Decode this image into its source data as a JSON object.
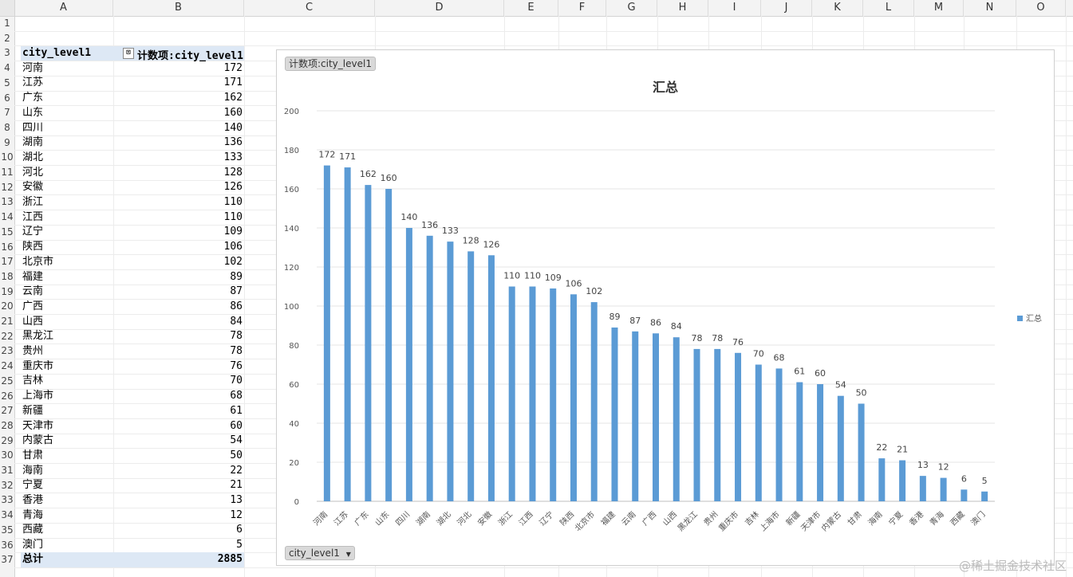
{
  "columns": [
    "A",
    "B",
    "C",
    "D",
    "E",
    "F",
    "G",
    "H",
    "I",
    "J",
    "K",
    "L",
    "M",
    "N",
    "O"
  ],
  "rows": [
    "1",
    "2",
    "3",
    "4",
    "5",
    "6",
    "7",
    "8",
    "9",
    "10",
    "11",
    "12",
    "13",
    "14",
    "15",
    "16",
    "17",
    "18",
    "19",
    "20",
    "21",
    "22",
    "23",
    "24",
    "25",
    "26",
    "27",
    "28",
    "29",
    "30",
    "31",
    "32",
    "33",
    "34",
    "35",
    "36",
    "37"
  ],
  "pivot": {
    "row_header": "city_level1",
    "value_header": "计数项:city_level1",
    "items": [
      {
        "name": "河南",
        "value": "172"
      },
      {
        "name": "江苏",
        "value": "171"
      },
      {
        "name": "广东",
        "value": "162"
      },
      {
        "name": "山东",
        "value": "160"
      },
      {
        "name": "四川",
        "value": "140"
      },
      {
        "name": "湖南",
        "value": "136"
      },
      {
        "name": "湖北",
        "value": "133"
      },
      {
        "name": "河北",
        "value": "128"
      },
      {
        "name": "安徽",
        "value": "126"
      },
      {
        "name": "浙江",
        "value": "110"
      },
      {
        "name": "江西",
        "value": "110"
      },
      {
        "name": "辽宁",
        "value": "109"
      },
      {
        "name": "陕西",
        "value": "106"
      },
      {
        "name": "北京市",
        "value": "102"
      },
      {
        "name": "福建",
        "value": "89"
      },
      {
        "name": "云南",
        "value": "87"
      },
      {
        "name": "广西",
        "value": "86"
      },
      {
        "name": "山西",
        "value": "84"
      },
      {
        "name": "黑龙江",
        "value": "78"
      },
      {
        "name": "贵州",
        "value": "78"
      },
      {
        "name": "重庆市",
        "value": "76"
      },
      {
        "name": "吉林",
        "value": "70"
      },
      {
        "name": "上海市",
        "value": "68"
      },
      {
        "name": "新疆",
        "value": "61"
      },
      {
        "name": "天津市",
        "value": "60"
      },
      {
        "name": "内蒙古",
        "value": "54"
      },
      {
        "name": "甘肃",
        "value": "50"
      },
      {
        "name": "海南",
        "value": "22"
      },
      {
        "name": "宁夏",
        "value": "21"
      },
      {
        "name": "香港",
        "value": "13"
      },
      {
        "name": "青海",
        "value": "12"
      },
      {
        "name": "西藏",
        "value": "6"
      },
      {
        "name": "澳门",
        "value": "5"
      }
    ],
    "total_label": "总计",
    "total_value": "2885"
  },
  "chart_chip_top": "计数项:city_level1",
  "chart_chip_bottom": "city_level1",
  "watermark": "@稀土掘金技术社区",
  "colors": {
    "bar": "#5b9bd5",
    "pivot_header_bg": "#dde8f5"
  },
  "chart_data": {
    "type": "bar",
    "title": "汇总",
    "categories": [
      "河南",
      "江苏",
      "广东",
      "山东",
      "四川",
      "湖南",
      "湖北",
      "河北",
      "安徽",
      "浙江",
      "江西",
      "辽宁",
      "陕西",
      "北京市",
      "福建",
      "云南",
      "广西",
      "山西",
      "黑龙江",
      "贵州",
      "重庆市",
      "吉林",
      "上海市",
      "新疆",
      "天津市",
      "内蒙古",
      "甘肃",
      "海南",
      "宁夏",
      "香港",
      "青海",
      "西藏",
      "澳门"
    ],
    "series": [
      {
        "name": "汇总",
        "values": [
          172,
          171,
          162,
          160,
          140,
          136,
          133,
          128,
          126,
          110,
          110,
          109,
          106,
          102,
          89,
          87,
          86,
          84,
          78,
          78,
          76,
          70,
          68,
          61,
          60,
          54,
          50,
          22,
          21,
          13,
          12,
          6,
          5
        ]
      }
    ],
    "ylim": [
      0,
      200
    ],
    "yticks": [
      0,
      20,
      40,
      60,
      80,
      100,
      120,
      140,
      160,
      180,
      200
    ],
    "legend": "right",
    "grid": true
  }
}
